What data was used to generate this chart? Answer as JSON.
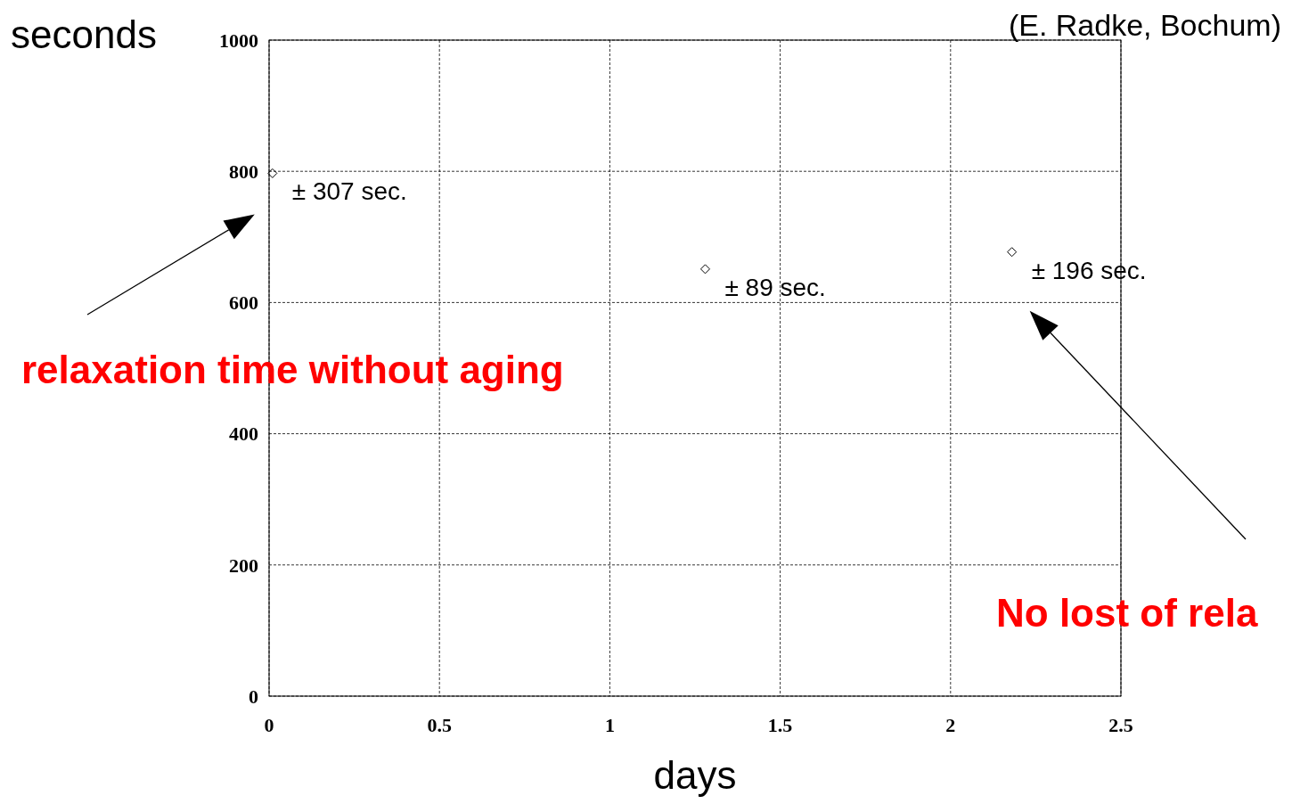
{
  "chart_data": {
    "type": "scatter",
    "xlabel": "days",
    "ylabel": "seconds",
    "x": [
      0.01,
      1.28,
      2.18
    ],
    "values": [
      797,
      651,
      677
    ],
    "color": "#000000",
    "marker": "diamond",
    "grid": true,
    "line_style": "dashed",
    "xlim": [
      0,
      2.5
    ],
    "xticks": [
      0,
      0.5,
      1,
      1.5,
      2,
      2.5
    ],
    "ylim": [
      0,
      1000
    ],
    "yticks": [
      0,
      200,
      400,
      600,
      800,
      1000
    ],
    "annotations": [
      "(E. Radke, Bochum)",
      "relaxation time without aging",
      "No lost of rela",
      {
        "text": "± 307 sec.",
        "x": 0.01,
        "y": 797
      },
      {
        "text": "± 89 sec.",
        "x": 1.28,
        "y": 651
      },
      {
        "text": "± 196 sec.",
        "x": 2.18,
        "y": 677
      }
    ]
  }
}
